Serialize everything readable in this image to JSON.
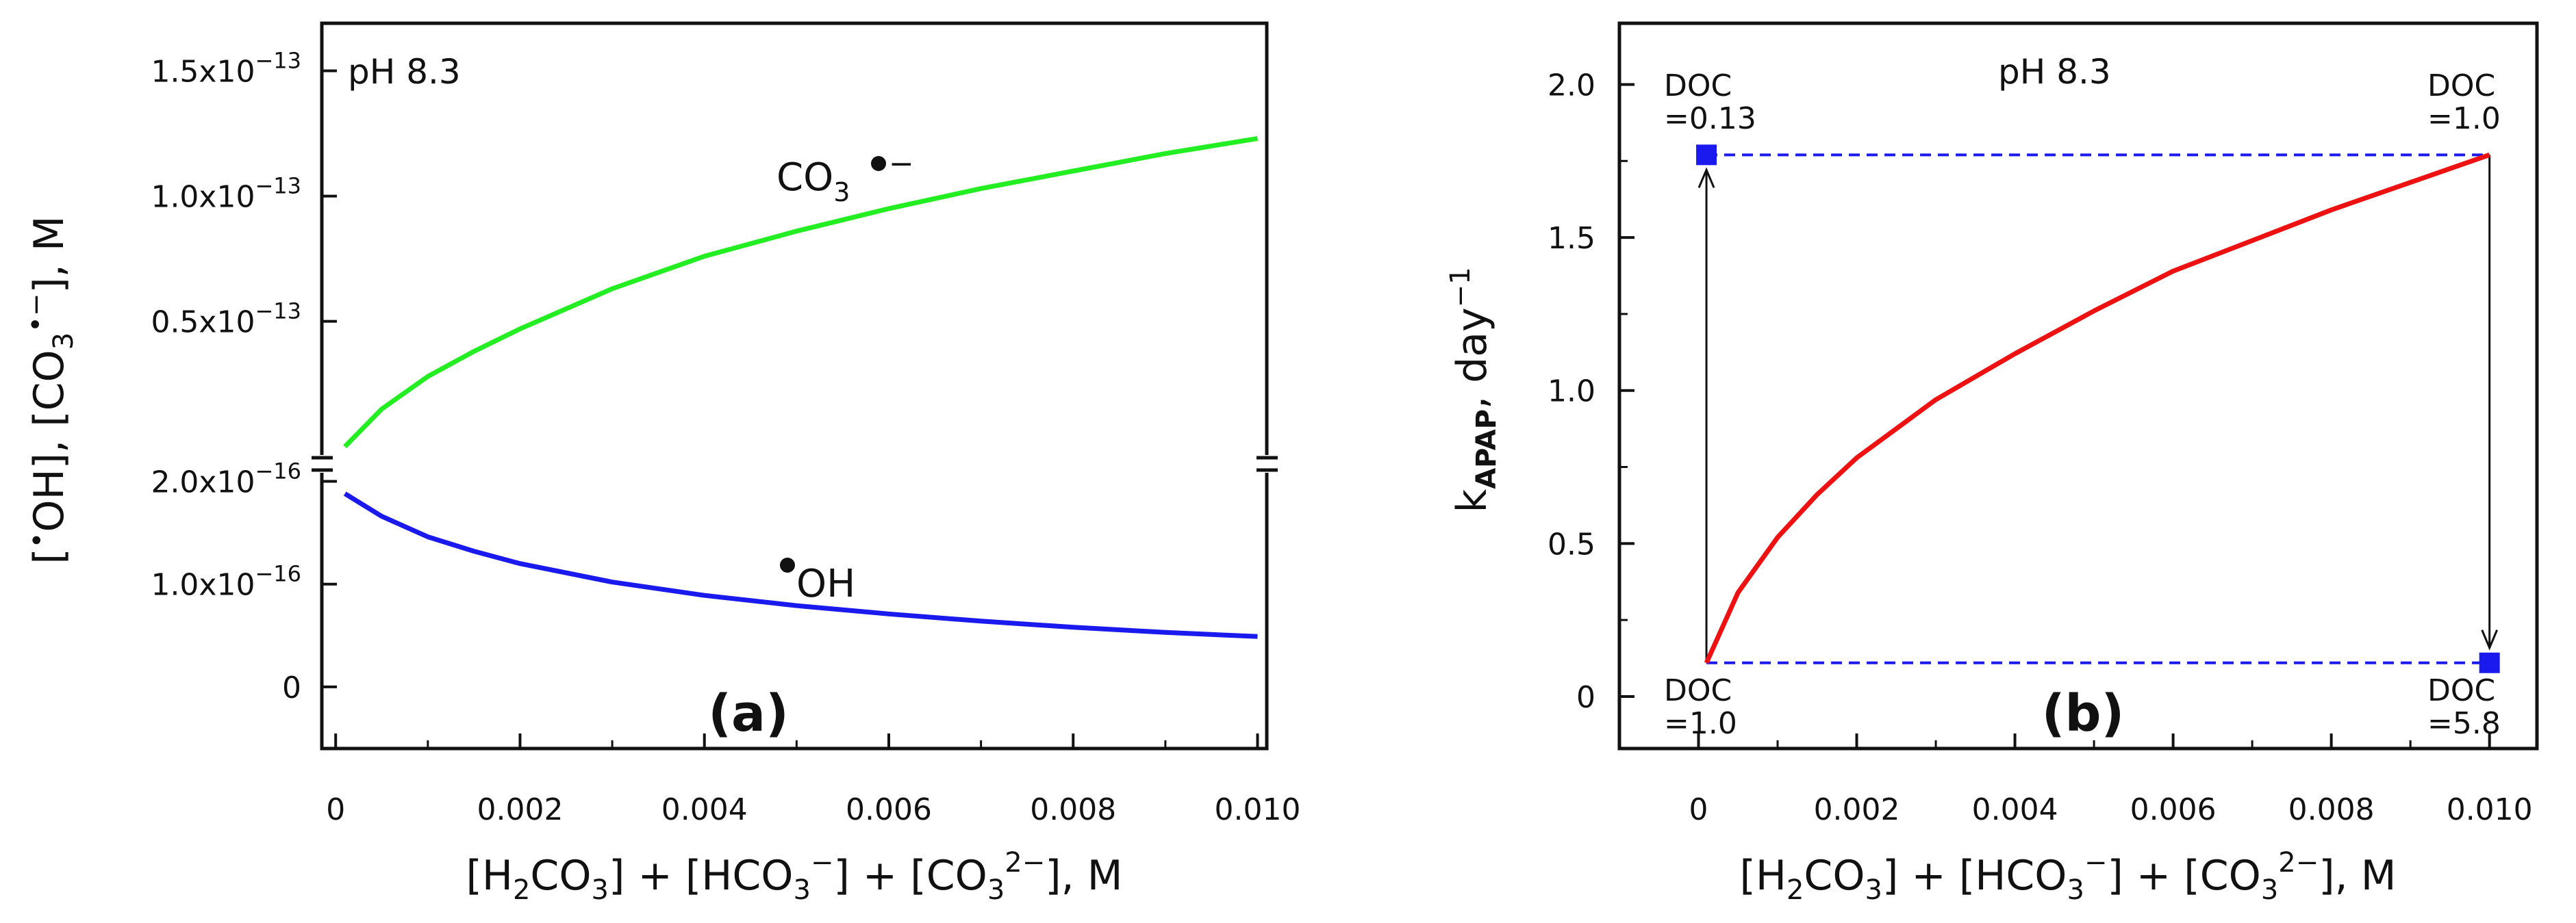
{
  "chart_data": [
    {
      "type": "line",
      "panel_label": "(a)",
      "annotation": "pH  8.3",
      "xlabel": "[H2CO3] + [HCO3−] + [CO32−], M",
      "ylabel": "[•OH], [CO3•−], M",
      "xlim": [
        -0.00015,
        0.0101
      ],
      "x_ticks": [
        0,
        0.002,
        0.004,
        0.006,
        0.008,
        0.01
      ],
      "x_tick_labels": [
        "0",
        "0.002",
        "0.004",
        "0.006",
        "0.008",
        "0.010"
      ],
      "axis_break": "y-axis broken between upper (×10^-13) and lower (×10^-16) scales",
      "upper_axis": {
        "ylim": [
          -2e-15,
          1.69e-13
        ],
        "ticks": [
          5e-14,
          1e-13,
          1.5e-13
        ],
        "tick_labels": [
          "0.5x10−13",
          "1.0x10−13",
          "1.5x10−13"
        ]
      },
      "lower_axis": {
        "ylim": [
          -6e-17,
          2.05e-16
        ],
        "ticks": [
          0,
          1e-16,
          2e-16
        ],
        "tick_labels": [
          "0",
          "1.0x10−16",
          "2.0x10−16"
        ]
      },
      "series": [
        {
          "name": "CO3•−",
          "axis": "upper",
          "color": "#22ee22",
          "x": [
            0.0001,
            0.0005,
            0.001,
            0.0015,
            0.002,
            0.003,
            0.004,
            0.005,
            0.006,
            0.007,
            0.008,
            0.009,
            0.01
          ],
          "y": [
            0.0,
            1.5e-14,
            2.8e-14,
            3.8e-14,
            4.7e-14,
            6.3e-14,
            7.6e-14,
            8.6e-14,
            9.5e-14,
            1.03e-13,
            1.1e-13,
            1.17e-13,
            1.23e-13
          ]
        },
        {
          "name": "•OH",
          "axis": "lower",
          "color": "#1a1aee",
          "x": [
            0.0001,
            0.0005,
            0.001,
            0.0015,
            0.002,
            0.003,
            0.004,
            0.005,
            0.006,
            0.007,
            0.008,
            0.009,
            0.01
          ],
          "y": [
            1.88e-16,
            1.66e-16,
            1.46e-16,
            1.32e-16,
            1.2e-16,
            1.02e-16,
            8.9e-17,
            7.9e-17,
            7.1e-17,
            6.4e-17,
            5.8e-17,
            5.3e-17,
            4.9e-17
          ]
        }
      ],
      "series_labels": {
        "co3": "CO3•−",
        "oh": "•OH"
      }
    },
    {
      "type": "line",
      "panel_label": "(b)",
      "annotation": "pH  8.3",
      "xlabel": "[H2CO3] + [HCO3−] + [CO32−], M",
      "ylabel": "kAPAP, day−1",
      "xlim": [
        -0.001,
        0.0106
      ],
      "ylim": [
        -0.17,
        2.2
      ],
      "x_ticks": [
        0,
        0.002,
        0.004,
        0.006,
        0.008,
        0.01
      ],
      "x_tick_labels": [
        "0",
        "0.002",
        "0.004",
        "0.006",
        "0.008",
        "0.010"
      ],
      "y_ticks": [
        0,
        0.5,
        1.0,
        1.5,
        2.0
      ],
      "y_tick_labels": [
        "0",
        "0.5",
        "1.0",
        "1.5",
        "2.0"
      ],
      "series": [
        {
          "name": "kAPAP",
          "color": "#ee1111",
          "x": [
            0.0001,
            0.0005,
            0.001,
            0.0015,
            0.002,
            0.003,
            0.004,
            0.005,
            0.006,
            0.007,
            0.008,
            0.009,
            0.01
          ],
          "y": [
            0.11,
            0.34,
            0.52,
            0.66,
            0.78,
            0.97,
            1.12,
            1.26,
            1.39,
            1.49,
            1.59,
            1.68,
            1.77
          ]
        }
      ],
      "reference_lines": {
        "color": "#1a1aee",
        "style": "dashed",
        "upper_y": 1.77,
        "lower_y": 0.11,
        "x_range": [
          0.0001,
          0.01
        ]
      },
      "markers": [
        {
          "x": 0.0001,
          "y": 1.77,
          "label_line1": "DOC",
          "label_line2": "=0.13"
        },
        {
          "x": 0.01,
          "y": 0.11,
          "label_line1": "DOC",
          "label_line2": "=5.8"
        }
      ],
      "point_labels": [
        {
          "label_line1": "DOC",
          "label_line2": "=1.0",
          "at": "upper-right end of curve"
        },
        {
          "label_line1": "DOC",
          "label_line2": "=1.0",
          "at": "lower-left start of curve"
        }
      ],
      "arrows": [
        {
          "from": [
            0.0001,
            0.11
          ],
          "to": [
            0.0001,
            1.77
          ]
        },
        {
          "from": [
            0.01,
            1.77
          ],
          "to": [
            0.01,
            0.11
          ]
        }
      ]
    }
  ]
}
